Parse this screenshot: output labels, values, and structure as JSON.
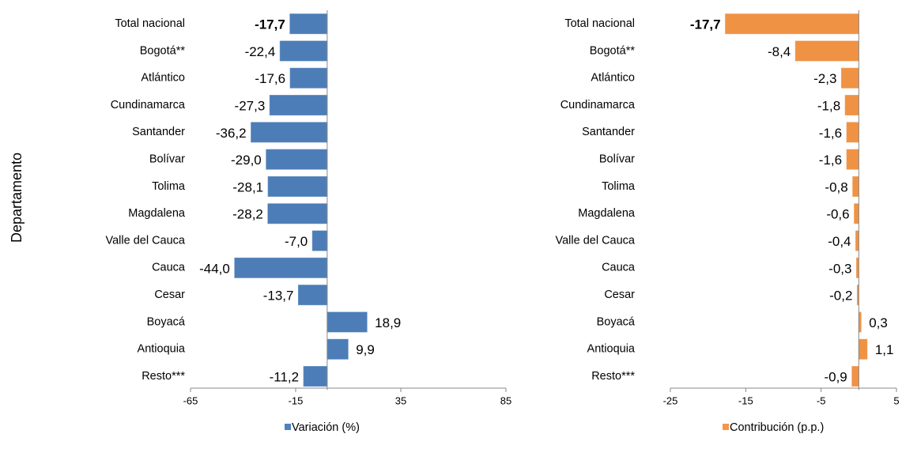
{
  "chart_data": [
    {
      "type": "bar",
      "orientation": "horizontal",
      "y_label": "Departamento",
      "categories": [
        "Total nacional",
        "Bogotá**",
        "Atlántico",
        "Cundinamarca",
        "Santander",
        "Bolívar",
        "Tolima",
        "Magdalena",
        "Valle del Cauca",
        "Cauca",
        "Cesar",
        "Boyacá",
        "Antioquia",
        "Resto***"
      ],
      "series": [
        {
          "name": "Variación (%)",
          "color": "#4f81bd",
          "values": [
            -17.7,
            -22.4,
            -17.6,
            -27.3,
            -36.2,
            -29.0,
            -28.1,
            -28.2,
            -7.0,
            -44.0,
            -13.7,
            18.9,
            9.9,
            -11.2
          ],
          "value_labels": [
            "-17,7",
            "-22,4",
            "-17,6",
            "-27,3",
            "-36,2",
            "-29,0",
            "-28,1",
            "-28,2",
            "-7,0",
            "-44,0",
            "-13,7",
            "18,9",
            "9,9",
            "-11,2"
          ]
        }
      ],
      "xlim": [
        -65,
        85
      ],
      "xticks": [
        -65,
        -15,
        35,
        85
      ]
    },
    {
      "type": "bar",
      "orientation": "horizontal",
      "categories": [
        "Total nacional",
        "Bogotá**",
        "Atlántico",
        "Cundinamarca",
        "Santander",
        "Bolívar",
        "Tolima",
        "Magdalena",
        "Valle del Cauca",
        "Cauca",
        "Cesar",
        "Boyacá",
        "Antioquia",
        "Resto***"
      ],
      "series": [
        {
          "name": "Contribución  (p.p.)",
          "color": "#f79646",
          "values": [
            -17.7,
            -8.4,
            -2.3,
            -1.8,
            -1.6,
            -1.6,
            -0.8,
            -0.6,
            -0.4,
            -0.3,
            -0.2,
            0.3,
            1.1,
            -0.9
          ],
          "value_labels": [
            "-17,7",
            "-8,4",
            "-2,3",
            "-1,8",
            "-1,6",
            "-1,6",
            "-0,8",
            "-0,6",
            "-0,4",
            "-0,3",
            "-0,2",
            "0,3",
            "1,1",
            "-0,9"
          ]
        }
      ],
      "xlim": [
        -25,
        5
      ],
      "xticks": [
        -25,
        -15,
        -5,
        5
      ]
    }
  ]
}
